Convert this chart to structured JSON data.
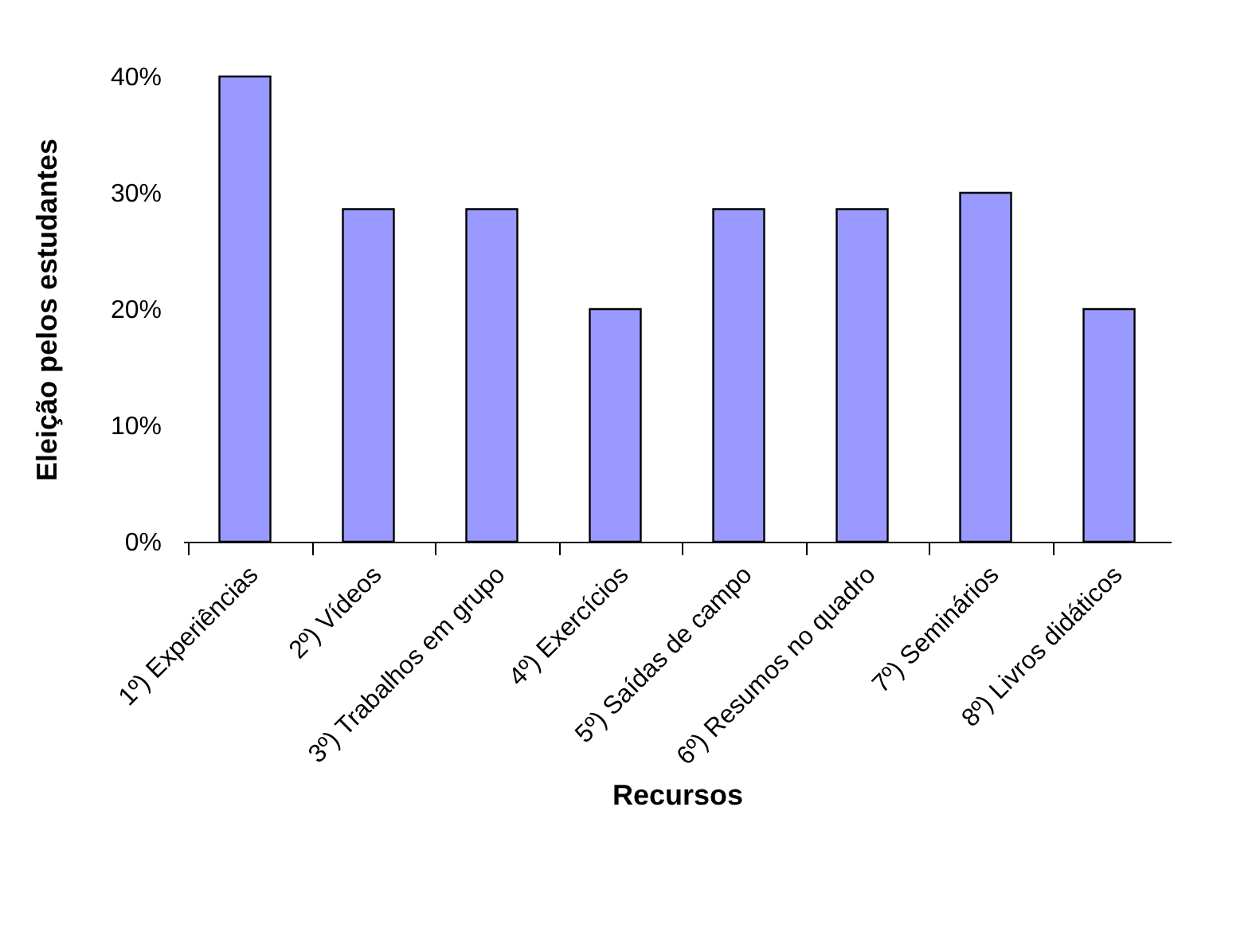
{
  "chart_data": {
    "type": "bar",
    "xlabel": "Recursos",
    "ylabel": "Eleição pelos estudantes",
    "categories": [
      "1º) Experiências",
      "2º) Vídeos",
      "3º) Trabalhos em grupo",
      "4º) Exercícios",
      "5º) Saídas de campo",
      "6º) Resumos no quadro",
      "7º) Seminários",
      "8º) Livros didáticos"
    ],
    "values": [
      40,
      28.6,
      28.6,
      20,
      28.6,
      28.6,
      30,
      20
    ],
    "color": "#9999ff",
    "ylim": [
      0,
      40
    ],
    "yticks": [
      {
        "value": 0,
        "label": "0%"
      },
      {
        "value": 10,
        "label": "10%"
      },
      {
        "value": 20,
        "label": "20%"
      },
      {
        "value": 30,
        "label": "30%"
      },
      {
        "value": 40,
        "label": "40%"
      }
    ],
    "grid": false
  }
}
